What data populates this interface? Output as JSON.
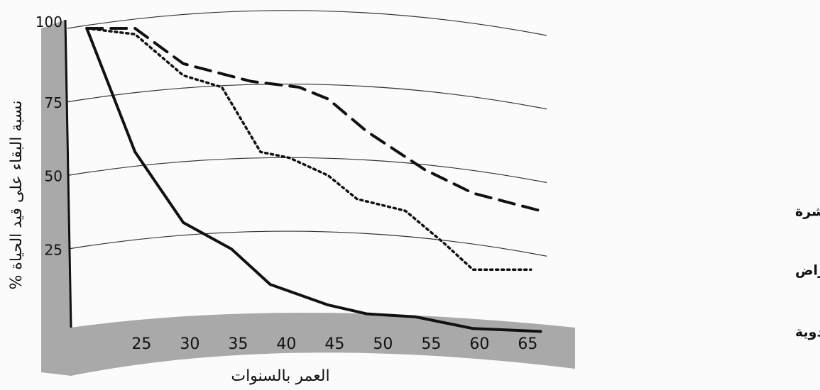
{
  "chart_data": {
    "type": "line",
    "title": "",
    "xlabel": "العمر بالسنوات",
    "ylabel": "نسبة البقاء على قيد الحياة %",
    "x": [
      25,
      30,
      35,
      40,
      45,
      50,
      55,
      60,
      65
    ],
    "x_tick_labels": [
      "25",
      "30",
      "35",
      "40",
      "45",
      "50",
      "55",
      "60",
      "65"
    ],
    "y_tick_labels": [
      "100",
      "75",
      "50",
      "25"
    ],
    "xlim": [
      21,
      71
    ],
    "ylim": [
      0,
      100
    ],
    "grid": true,
    "series": [
      {
        "name": "استخدام الأدوية بعد الإصابة مباشرة",
        "style": "dashed",
        "points": [
          [
            23,
            100
          ],
          [
            28,
            100
          ],
          [
            33,
            88
          ],
          [
            40,
            82
          ],
          [
            45,
            80
          ],
          [
            48,
            76
          ],
          [
            52,
            65
          ],
          [
            58,
            52
          ],
          [
            63,
            44
          ],
          [
            70,
            38
          ]
        ]
      },
      {
        "name": "استخدام الأدوية بعد ظهور الأعراض",
        "style": "dotted",
        "points": [
          [
            23,
            100
          ],
          [
            28,
            98
          ],
          [
            33,
            84
          ],
          [
            37,
            80
          ],
          [
            41,
            58
          ],
          [
            44,
            56
          ],
          [
            48,
            50
          ],
          [
            51,
            42
          ],
          [
            56,
            38
          ],
          [
            60,
            27
          ],
          [
            63,
            18
          ],
          [
            69,
            18
          ]
        ]
      },
      {
        "name": "بدون استخدام الأدوية",
        "style": "solid",
        "points": [
          [
            23,
            100
          ],
          [
            28,
            58
          ],
          [
            33,
            34
          ],
          [
            38,
            25
          ],
          [
            42,
            13
          ],
          [
            48,
            6
          ],
          [
            52,
            3
          ],
          [
            57,
            2
          ],
          [
            63,
            -2
          ],
          [
            70,
            -3
          ]
        ]
      }
    ],
    "colors": {
      "line": "#111111",
      "grid": "#333333",
      "base": "#a9a9a9"
    }
  }
}
